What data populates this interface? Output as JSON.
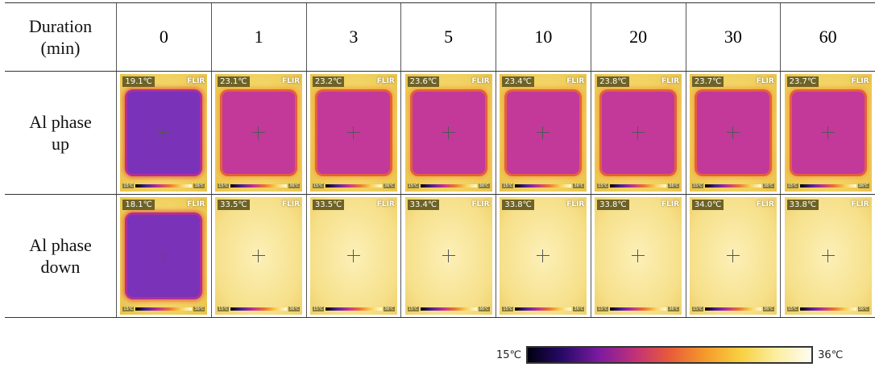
{
  "table": {
    "header": [
      "Duration (min)",
      "0",
      "1",
      "3",
      "5",
      "10",
      "20",
      "30",
      "60"
    ],
    "rows": [
      {
        "label": "Al phase up",
        "readings": [
          "19.1℃",
          "23.1℃",
          "23.2℃",
          "23.6℃",
          "23.4℃",
          "23.8℃",
          "23.7℃",
          "23.7℃"
        ]
      },
      {
        "label": "Al phase down",
        "readings": [
          "18.1℃",
          "33.5℃",
          "33.5℃",
          "33.4℃",
          "33.8℃",
          "33.8℃",
          "34.0℃",
          "33.8℃"
        ]
      }
    ]
  },
  "camera_logo": "FLIR",
  "colorbar": {
    "min": "15℃",
    "max": "36℃"
  }
}
